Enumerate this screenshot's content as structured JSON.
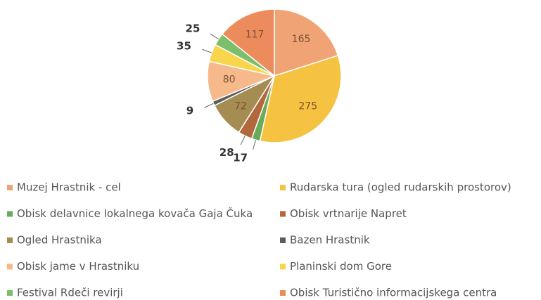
{
  "chart_data": {
    "type": "pie",
    "categories": [
      "Muzej Hrastnik - cel",
      "Rudarska tura  (ogled rudarskih prostorov)",
      "Obisk delavnice lokalnega kovača Gaja Čuka",
      "Obisk vrtnarije Napret",
      "Ogled Hrastnika",
      "Bazen Hrastnik",
      "Obisk jame v Hrastniku",
      "Planinski dom Gore",
      "Festival Rdeči revirji",
      "Obisk Turistično informacijskega centra"
    ],
    "values": [
      165,
      275,
      17,
      28,
      72,
      9,
      80,
      35,
      25,
      117
    ],
    "colors": [
      "#f0a374",
      "#f5c242",
      "#6aaa5a",
      "#b0683c",
      "#a48c52",
      "#5c5c5c",
      "#f6b98c",
      "#f8d54c",
      "#7cbf6a",
      "#ec8c5c"
    ],
    "legend": "bottom"
  }
}
